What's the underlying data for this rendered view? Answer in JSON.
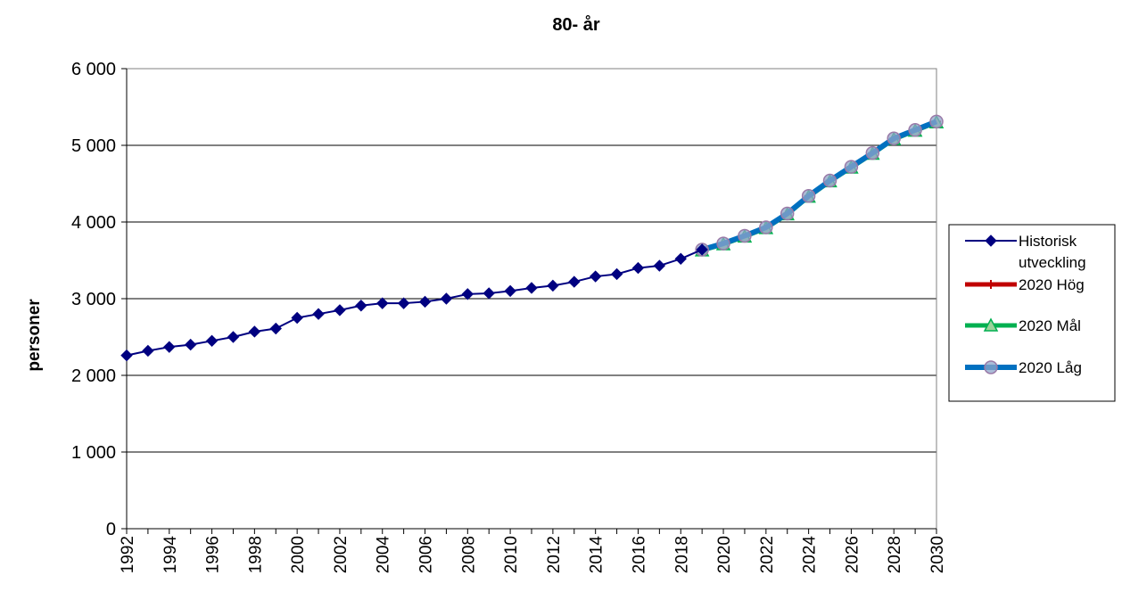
{
  "chart_data": {
    "type": "line",
    "title": "80- år",
    "xlabel": "",
    "ylabel": "personer",
    "x_tick_labels": [
      "1992",
      "1994",
      "1996",
      "1998",
      "2000",
      "2002",
      "2004",
      "2006",
      "2008",
      "2010",
      "2012",
      "2014",
      "2016",
      "2018",
      "2020",
      "2022",
      "2024",
      "2026",
      "2028",
      "2030"
    ],
    "y_tick_labels": [
      "0",
      "1 000",
      "2 000",
      "3 000",
      "4 000",
      "5 000",
      "6 000"
    ],
    "xlim": [
      1992,
      2030
    ],
    "ylim": [
      0,
      6000
    ],
    "grid": "horizontal",
    "legend_position": "right",
    "series": [
      {
        "name": "Historisk utveckling",
        "color": "#000080",
        "marker": "diamond",
        "x": [
          1992,
          1993,
          1994,
          1995,
          1996,
          1997,
          1998,
          1999,
          2000,
          2001,
          2002,
          2003,
          2004,
          2005,
          2006,
          2007,
          2008,
          2009,
          2010,
          2011,
          2012,
          2013,
          2014,
          2015,
          2016,
          2017,
          2018,
          2019
        ],
        "values": [
          2260,
          2320,
          2370,
          2400,
          2450,
          2500,
          2570,
          2610,
          2750,
          2800,
          2850,
          2910,
          2940,
          2940,
          2960,
          3000,
          3060,
          3070,
          3100,
          3140,
          3170,
          3220,
          3290,
          3320,
          3400,
          3430,
          3520,
          3640
        ]
      },
      {
        "name": "2020 Hög",
        "color": "#c00000",
        "marker": "cross",
        "x": [
          2019,
          2020,
          2021,
          2022,
          2023,
          2024,
          2025,
          2026,
          2027,
          2028,
          2029,
          2030
        ],
        "values": [
          3640,
          3720,
          3820,
          3930,
          4110,
          4340,
          4540,
          4720,
          4900,
          5090,
          5200,
          5310
        ]
      },
      {
        "name": "2020 Mål",
        "color": "#00b050",
        "marker": "triangle",
        "x": [
          2019,
          2020,
          2021,
          2022,
          2023,
          2024,
          2025,
          2026,
          2027,
          2028,
          2029,
          2030
        ],
        "values": [
          3630,
          3710,
          3810,
          3920,
          4100,
          4330,
          4530,
          4710,
          4890,
          5080,
          5190,
          5300
        ]
      },
      {
        "name": "2020 Låg",
        "color": "#0070c0",
        "marker": "circle",
        "x": [
          2019,
          2020,
          2021,
          2022,
          2023,
          2024,
          2025,
          2026,
          2027,
          2028,
          2029,
          2030
        ],
        "values": [
          3640,
          3720,
          3820,
          3930,
          4110,
          4340,
          4540,
          4720,
          4900,
          5090,
          5200,
          5310
        ]
      }
    ],
    "legend_labels": [
      [
        "Historisk",
        "utveckling"
      ],
      [
        "2020 Hög"
      ],
      [
        "2020 Mål"
      ],
      [
        "2020 Låg"
      ]
    ]
  }
}
